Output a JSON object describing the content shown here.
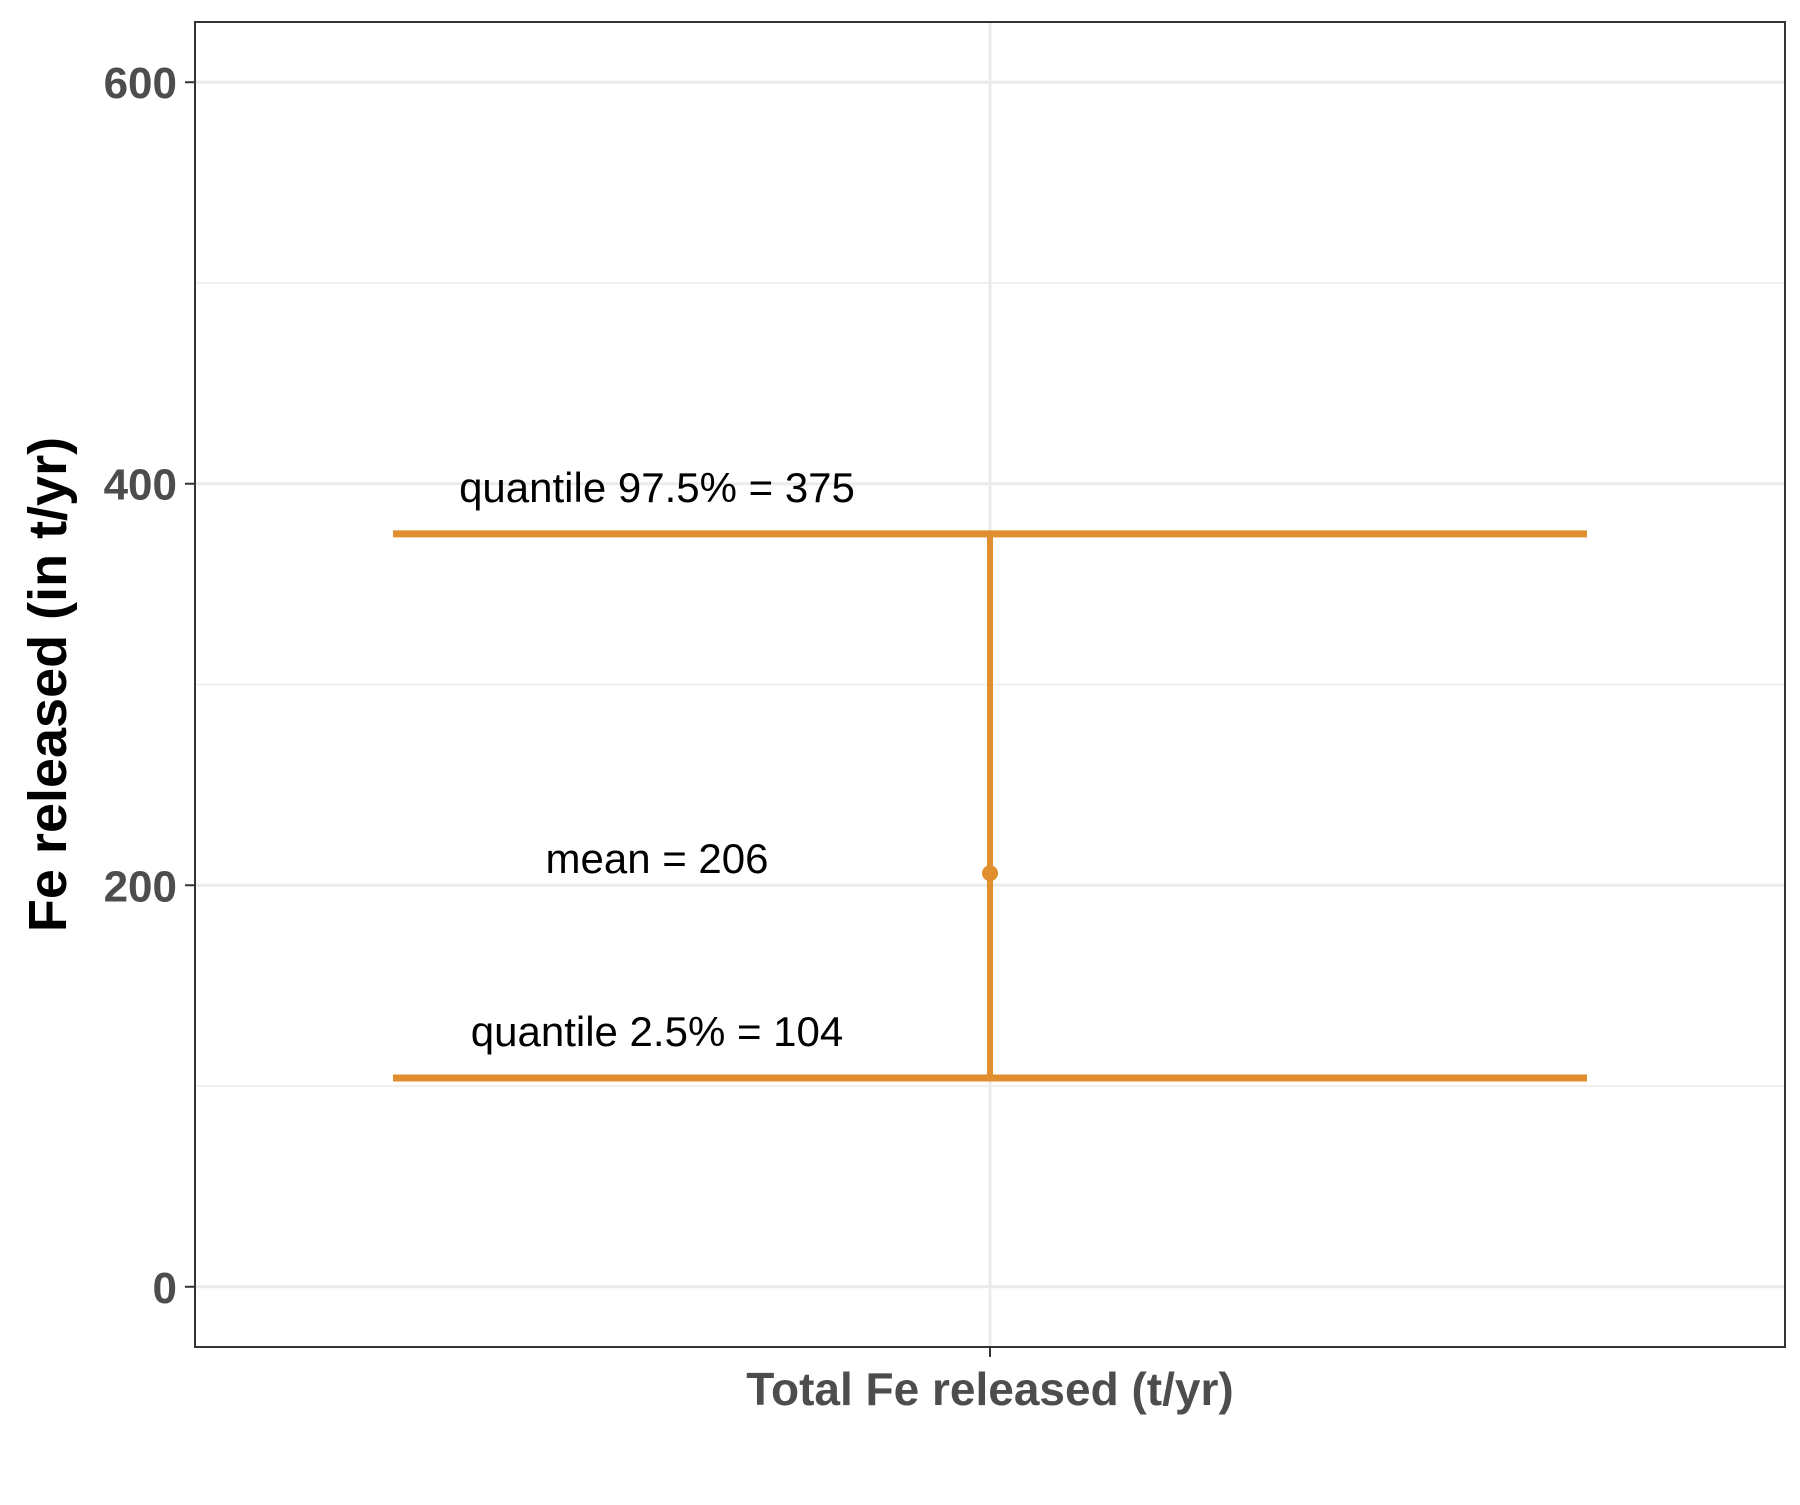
{
  "chart_data": {
    "type": "errorbar",
    "title": "",
    "xlabel": "",
    "ylabel": "Fe released (in t/yr)",
    "ylim": [
      -30,
      630
    ],
    "yticks": [
      0,
      200,
      400,
      600
    ],
    "y_minor_ticks": [
      100,
      300,
      500
    ],
    "grid": true,
    "categories": [
      "Total Fe released (t/yr)"
    ],
    "series": [
      {
        "category": "Total Fe released (t/yr)",
        "mean": 206,
        "lower": 104,
        "upper": 375,
        "color": "#E08E2E"
      }
    ],
    "annotations": [
      {
        "text": "quantile 97.5% = 375",
        "y": 375
      },
      {
        "text": "mean = 206",
        "y": 206
      },
      {
        "text": "quantile 2.5% = 104",
        "y": 104
      }
    ],
    "colors": {
      "series": "#E08E2E",
      "grid": "#EBEBEB",
      "panel_border": "#333333",
      "tick_text": "#4D4D4D",
      "axis_title": "#000000",
      "annotation_text": "#000000"
    }
  }
}
